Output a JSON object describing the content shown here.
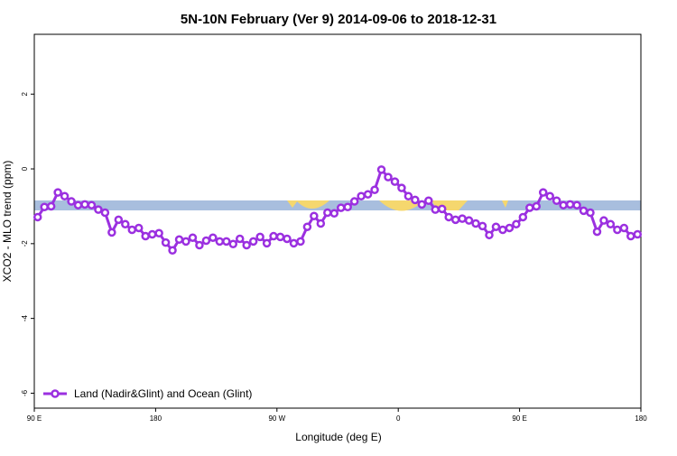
{
  "chart_data": {
    "type": "line",
    "title": "5N-10N February (Ver 9)   2014-09-06 to 2018-12-31",
    "x_label": "Longitude (deg E)",
    "y_label": "XCO2 - MLO trend (ppm)",
    "xlim": [
      90,
      540
    ],
    "ylim": [
      -6.4,
      3.6
    ],
    "xticks": [
      {
        "value": 90,
        "label": "90 E"
      },
      180,
      {
        "value": 270,
        "label": "90 W"
      },
      {
        "value": 360,
        "label": "0"
      },
      {
        "value": 450,
        "label": "90 E"
      },
      {
        "value": 540,
        "label": "180"
      }
    ],
    "yticks": [
      -6,
      -4,
      -2,
      0,
      2
    ],
    "legend": "bottom-left",
    "x": [
      92.5,
      97.5,
      102.5,
      107.5,
      112.5,
      117.5,
      122.5,
      127.5,
      132.5,
      137.5,
      142.5,
      147.5,
      152.5,
      157.5,
      162.5,
      167.5,
      172.5,
      177.5,
      182.5,
      187.5,
      192.5,
      197.5,
      202.5,
      207.5,
      212.5,
      217.5,
      222.5,
      227.5,
      232.5,
      237.5,
      242.5,
      247.5,
      252.5,
      257.5,
      262.5,
      267.5,
      272.5,
      277.5,
      282.5,
      287.5,
      292.5,
      297.5,
      302.5,
      307.5,
      312.5,
      317.5,
      322.5,
      327.5,
      332.5,
      337.5,
      342.5,
      347.5,
      352.5,
      357.5,
      362.5,
      367.5,
      372.5,
      377.5,
      382.5,
      387.5,
      392.5,
      397.5,
      402.5,
      407.5,
      412.5,
      417.5,
      422.5,
      427.5,
      432.5,
      437.5,
      442.5,
      447.5,
      452.5,
      457.5,
      462.5,
      467.5,
      472.5,
      477.5,
      482.5,
      487.5,
      492.5,
      497.5,
      502.5,
      507.5,
      512.5,
      517.5,
      522.5,
      527.5,
      532.5,
      537.5
    ],
    "series": [
      {
        "name": "Land (Nadir&Glint) and Ocean (Glint)",
        "color": "#9b30e0",
        "values": [
          -1.29,
          -1.02,
          -1.0,
          -0.63,
          -0.73,
          -0.87,
          -0.97,
          -0.95,
          -0.97,
          -1.09,
          -1.17,
          -1.7,
          -1.36,
          -1.48,
          -1.63,
          -1.58,
          -1.8,
          -1.75,
          -1.72,
          -1.97,
          -2.18,
          -1.89,
          -1.94,
          -1.84,
          -2.04,
          -1.92,
          -1.84,
          -1.94,
          -1.94,
          -2.01,
          -1.87,
          -2.04,
          -1.94,
          -1.82,
          -1.99,
          -1.8,
          -1.82,
          -1.87,
          -1.99,
          -1.94,
          -1.55,
          -1.26,
          -1.46,
          -1.17,
          -1.19,
          -1.04,
          -1.02,
          -0.87,
          -0.73,
          -0.68,
          -0.56,
          -0.02,
          -0.22,
          -0.34,
          -0.51,
          -0.73,
          -0.83,
          -0.95,
          -0.85,
          -1.09,
          -1.07,
          -1.29,
          -1.36,
          -1.33,
          -1.38,
          -1.46,
          -1.53,
          -1.77,
          -1.55,
          -1.63,
          -1.58,
          -1.48,
          -1.29,
          -1.04,
          -1.0,
          -0.63,
          -0.73,
          -0.85,
          -0.97,
          -0.95,
          -0.97,
          -1.12,
          -1.17,
          -1.68,
          -1.38,
          -1.48,
          -1.63,
          -1.58,
          -1.8,
          -1.75
        ]
      }
    ]
  }
}
